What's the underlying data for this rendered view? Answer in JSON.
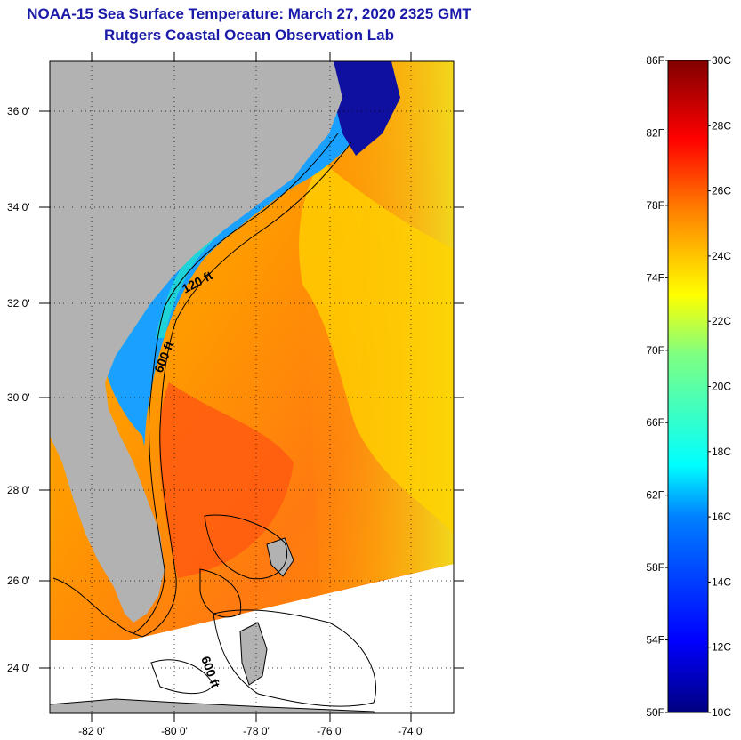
{
  "title": {
    "line1": "NOAA-15 Sea Surface Temperature:  March 27, 2020 2325 GMT",
    "line2": "Rutgers Coastal Ocean Observation Lab"
  },
  "map": {
    "lat_labels": [
      "36 0'",
      "34 0'",
      "32 0'",
      "30 0'",
      "28 0'",
      "26 0'",
      "24 0'"
    ],
    "lon_labels": [
      "-82 0'",
      "-80 0'",
      "-78 0'",
      "-76 0'",
      "-74 0'"
    ],
    "contour_labels": [
      "120 ft",
      "600 ft",
      "600 ft"
    ],
    "land_color": "#b2b2b2",
    "grid_style": "dotted"
  },
  "colorbar": {
    "fahrenheit_labels": [
      "86F",
      "82F",
      "78F",
      "74F",
      "70F",
      "66F",
      "62F",
      "58F",
      "54F",
      "50F"
    ],
    "celsius_labels": [
      "30C",
      "28C",
      "26C",
      "24C",
      "22C",
      "20C",
      "18C",
      "16C",
      "14C",
      "12C",
      "10C"
    ],
    "colormap": [
      "#000080",
      "#0000ff",
      "#0080ff",
      "#00ffff",
      "#80ff80",
      "#ffff00",
      "#ff8000",
      "#ff0000",
      "#800000"
    ]
  }
}
